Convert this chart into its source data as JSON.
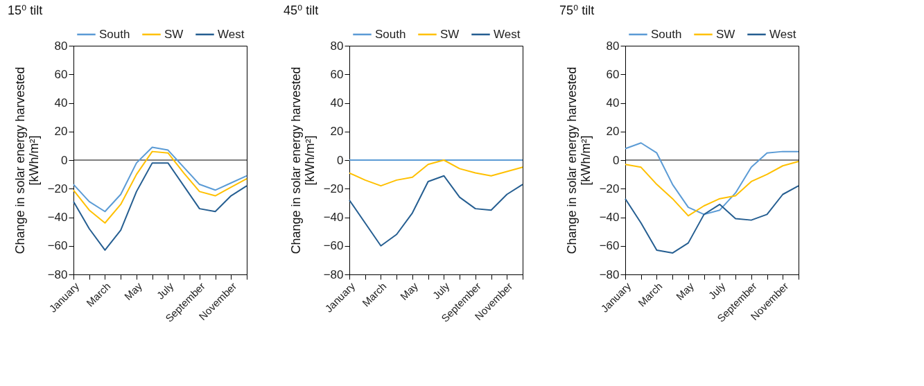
{
  "chart_data": [
    {
      "type": "line",
      "title": "15⁰ tilt",
      "ylabel": "Change in solar energy harvested\n[kWh/m²]",
      "categories": [
        "January",
        null,
        "March",
        null,
        "May",
        null,
        "July",
        null,
        "September",
        null,
        "November",
        null
      ],
      "ylim": [
        -80,
        80
      ],
      "yticks": [
        -80,
        -60,
        -40,
        -20,
        0,
        20,
        40,
        60,
        80
      ],
      "grid": false,
      "legend": "top",
      "ref_lines": [
        {
          "axis": "y",
          "value": 0,
          "color": "#000000"
        }
      ],
      "series": [
        {
          "name": "South",
          "color": "#5b9bd5",
          "values": [
            -17,
            -29,
            -36,
            -24,
            -2,
            9,
            7,
            -5,
            -17,
            -21,
            -16,
            -11
          ]
        },
        {
          "name": "SW",
          "color": "#ffc000",
          "values": [
            -21,
            -35,
            -44,
            -31,
            -10,
            6,
            5,
            -9,
            -22,
            -25,
            -19,
            -13
          ]
        },
        {
          "name": "West",
          "color": "#255e91",
          "values": [
            -29,
            -48,
            -63,
            -49,
            -22,
            -2,
            -2,
            -18,
            -34,
            -36,
            -25,
            -18
          ]
        }
      ]
    },
    {
      "type": "line",
      "title": "45⁰ tilt",
      "ylabel": "Change in solar energy harvested\n[kWh/m²]",
      "categories": [
        "January",
        null,
        "March",
        null,
        "May",
        null,
        "July",
        null,
        "September",
        null,
        "November",
        null
      ],
      "ylim": [
        -80,
        80
      ],
      "yticks": [
        -80,
        -60,
        -40,
        -20,
        0,
        20,
        40,
        60,
        80
      ],
      "grid": false,
      "legend": "top",
      "series": [
        {
          "name": "South",
          "color": "#5b9bd5",
          "values": [
            0,
            0,
            0,
            0,
            0,
            0,
            0,
            0,
            0,
            0,
            0,
            0
          ]
        },
        {
          "name": "SW",
          "color": "#ffc000",
          "values": [
            -9,
            -14,
            -18,
            -14,
            -12,
            -3,
            0,
            -6,
            -9,
            -11,
            -8,
            -5
          ]
        },
        {
          "name": "West",
          "color": "#255e91",
          "values": [
            -28,
            -44,
            -60,
            -52,
            -37,
            -15,
            -11,
            -26,
            -34,
            -35,
            -24,
            -17
          ]
        }
      ]
    },
    {
      "type": "line",
      "title": "75⁰ tilt",
      "ylabel": "Change in solar energy harvested\n[kWh/m²]",
      "categories": [
        "January",
        null,
        "March",
        null,
        "May",
        null,
        "July",
        null,
        "September",
        null,
        "November",
        null
      ],
      "ylim": [
        -80,
        80
      ],
      "yticks": [
        -80,
        -60,
        -40,
        -20,
        0,
        20,
        40,
        60,
        80
      ],
      "grid": false,
      "legend": "top",
      "ref_lines": [
        {
          "axis": "y",
          "value": 0,
          "color": "#000000"
        }
      ],
      "series": [
        {
          "name": "South",
          "color": "#5b9bd5",
          "values": [
            8,
            12,
            5,
            -17,
            -33,
            -38,
            -35,
            -23,
            -5,
            5,
            6,
            6
          ]
        },
        {
          "name": "SW",
          "color": "#ffc000",
          "values": [
            -3,
            -5,
            -17,
            -27,
            -39,
            -32,
            -27,
            -25,
            -15,
            -10,
            -4,
            -1
          ]
        },
        {
          "name": "West",
          "color": "#255e91",
          "values": [
            -27,
            -44,
            -63,
            -65,
            -58,
            -38,
            -31,
            -41,
            -42,
            -38,
            -24,
            -18
          ]
        }
      ]
    }
  ]
}
